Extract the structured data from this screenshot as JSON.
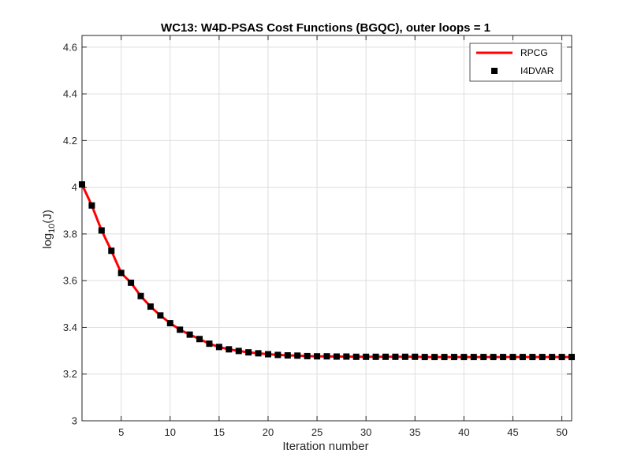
{
  "chart_data": {
    "type": "line",
    "title": "WC13: W4D-PSAS Cost Functions (BGQC), outer loops = 1",
    "xlabel": "Iteration number",
    "ylabel": {
      "base": "log",
      "sub": "10",
      "rest": "(J)"
    },
    "xlim": [
      1,
      51
    ],
    "ylim": [
      3,
      4.65
    ],
    "xticks": [
      5,
      10,
      15,
      20,
      25,
      30,
      35,
      40,
      45,
      50
    ],
    "xtick_labels": [
      "5",
      "10",
      "15",
      "20",
      "25",
      "30",
      "35",
      "40",
      "45",
      "50"
    ],
    "yticks": [
      3,
      3.2,
      3.4,
      3.6,
      3.8,
      4,
      4.2,
      4.4,
      4.6
    ],
    "ytick_labels": [
      "3",
      "3.2",
      "3.4",
      "3.6",
      "3.8",
      "4",
      "4.2",
      "4.4",
      "4.6"
    ],
    "grid": true,
    "legend_position": "top-right",
    "x": [
      1,
      2,
      3,
      4,
      5,
      6,
      7,
      8,
      9,
      10,
      11,
      12,
      13,
      14,
      15,
      16,
      17,
      18,
      19,
      20,
      21,
      22,
      23,
      24,
      25,
      26,
      27,
      28,
      29,
      30,
      31,
      32,
      33,
      34,
      35,
      36,
      37,
      38,
      39,
      40,
      41,
      42,
      43,
      44,
      45,
      46,
      47,
      48,
      49,
      50,
      51
    ],
    "series": [
      {
        "name": "RPCG",
        "style": "line",
        "color": "#ff0000",
        "values": [
          4.012,
          3.922,
          3.815,
          3.728,
          3.633,
          3.591,
          3.534,
          3.489,
          3.451,
          3.418,
          3.39,
          3.369,
          3.35,
          3.33,
          3.316,
          3.306,
          3.299,
          3.293,
          3.289,
          3.285,
          3.282,
          3.28,
          3.279,
          3.277,
          3.276,
          3.276,
          3.275,
          3.275,
          3.274,
          3.274,
          3.274,
          3.274,
          3.274,
          3.274,
          3.274,
          3.273,
          3.273,
          3.273,
          3.273,
          3.273,
          3.273,
          3.273,
          3.273,
          3.273,
          3.273,
          3.273,
          3.273,
          3.273,
          3.273,
          3.273,
          3.273
        ]
      },
      {
        "name": "I4DVAR",
        "style": "markers",
        "color": "#000000",
        "values": [
          4.012,
          3.922,
          3.815,
          3.728,
          3.633,
          3.591,
          3.534,
          3.489,
          3.451,
          3.418,
          3.39,
          3.369,
          3.35,
          3.33,
          3.316,
          3.306,
          3.299,
          3.293,
          3.289,
          3.285,
          3.282,
          3.28,
          3.279,
          3.277,
          3.276,
          3.276,
          3.275,
          3.275,
          3.274,
          3.274,
          3.274,
          3.274,
          3.274,
          3.274,
          3.274,
          3.273,
          3.273,
          3.273,
          3.273,
          3.273,
          3.273,
          3.273,
          3.273,
          3.273,
          3.273,
          3.273,
          3.273,
          3.273,
          3.273,
          3.273,
          3.273
        ]
      }
    ]
  }
}
